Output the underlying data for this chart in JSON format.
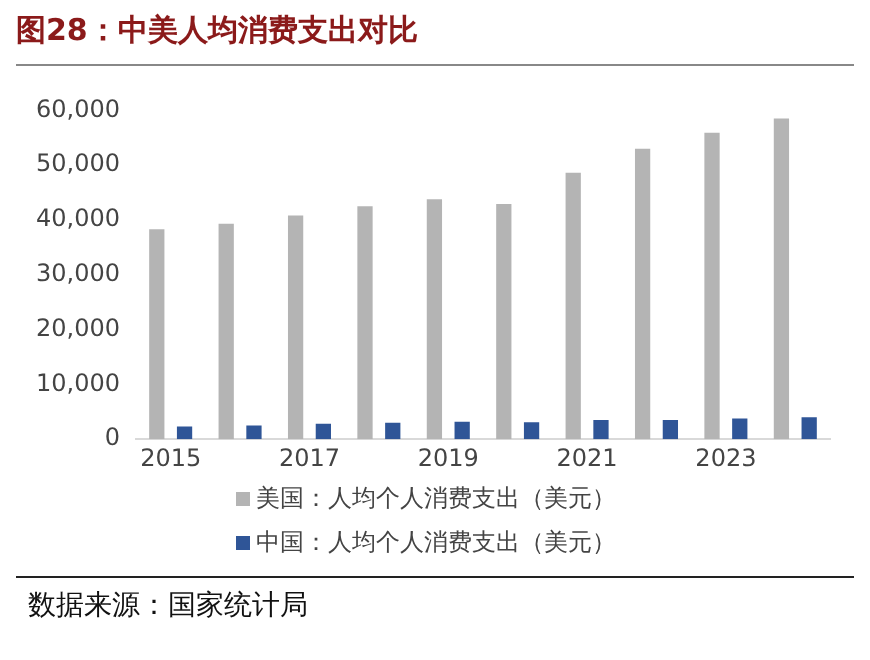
{
  "chart_data": {
    "type": "bar",
    "title": "图28：中美人均消费支出对比",
    "categories": [
      "2015",
      null,
      "2017",
      null,
      "2019",
      null,
      "2021",
      null,
      "2023",
      null
    ],
    "series": [
      {
        "name": "美国：人均个人消费支出（美元）",
        "color": "#b4b4b4",
        "values": [
          38300,
          39300,
          40800,
          42500,
          43800,
          42900,
          48600,
          53000,
          55900,
          58500
        ]
      },
      {
        "name": "中国：人均个人消费支出（美元）",
        "color": "#2f5597",
        "values": [
          2300,
          2500,
          2800,
          3000,
          3200,
          3100,
          3500,
          3500,
          3800,
          4000
        ]
      }
    ],
    "ylim": [
      0,
      60000
    ],
    "yticks": [
      0,
      {
        "value": 10000,
        "label": "10,000"
      },
      {
        "value": 20000,
        "label": "20,000"
      },
      {
        "value": 30000,
        "label": "30,000"
      },
      {
        "value": 40000,
        "label": "40,000"
      },
      {
        "value": 50000,
        "label": "50,000"
      },
      {
        "value": 60000,
        "label": "60,000"
      }
    ],
    "grid": false,
    "legend": "bottom",
    "annotations": [
      "数据来源：国家统计局"
    ]
  }
}
